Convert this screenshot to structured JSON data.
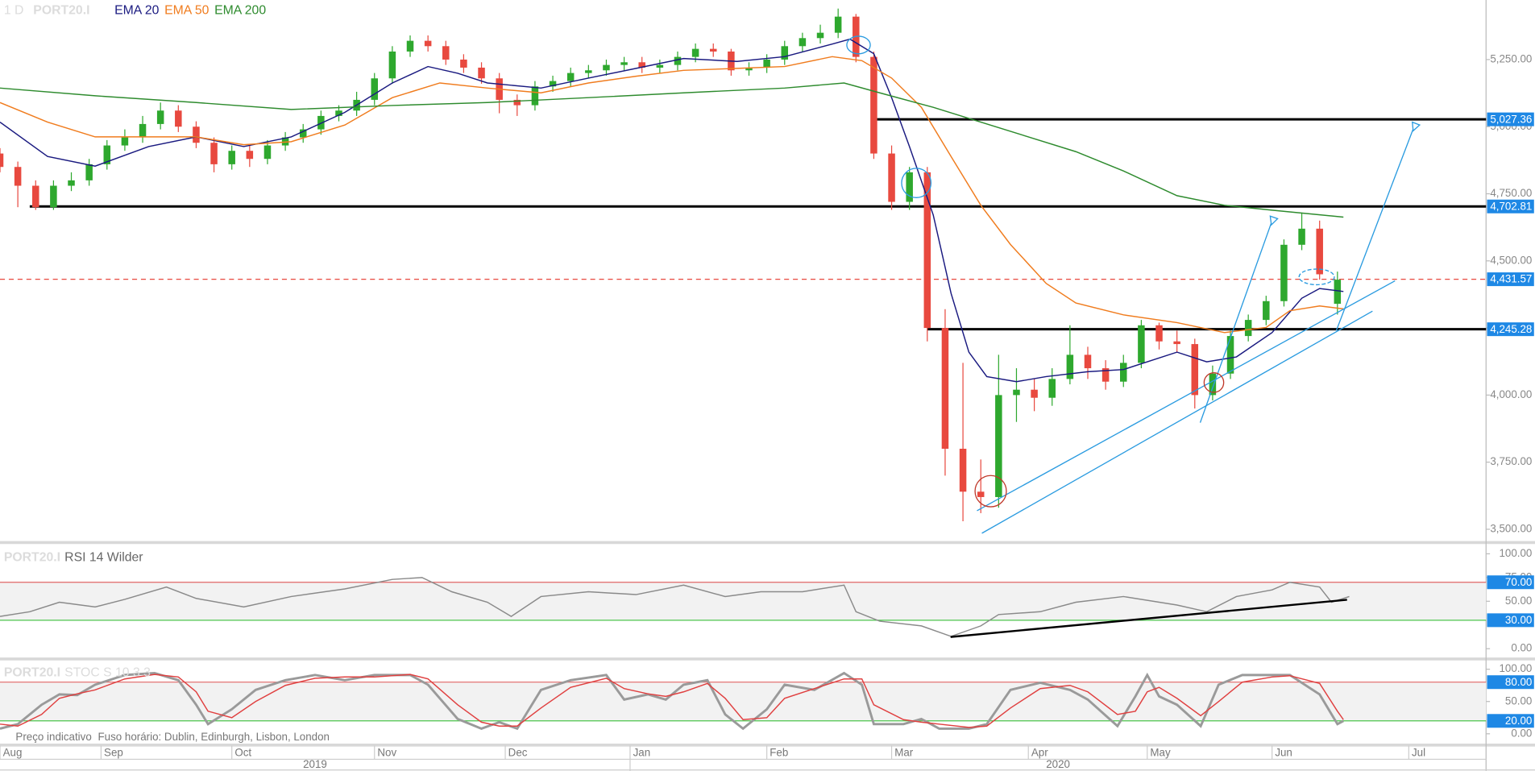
{
  "chart_data": [
    {
      "type": "candlestick",
      "timeframe": "1 D",
      "symbol": "PORT20.I",
      "xlim": [
        0,
        250
      ],
      "xticks": [
        {
          "value": 0,
          "label": "Aug"
        },
        {
          "value": 17,
          "label": "Sep"
        },
        {
          "value": 39,
          "label": "Oct"
        },
        {
          "value": 63,
          "label": "Nov"
        },
        {
          "value": 85,
          "label": "Dec"
        },
        {
          "value": 106,
          "label": "Jan"
        },
        {
          "value": 129,
          "label": "Feb"
        },
        {
          "value": 150,
          "label": "Mar"
        },
        {
          "value": 173,
          "label": "Apr"
        },
        {
          "value": 193,
          "label": "May"
        },
        {
          "value": 214,
          "label": "Jun"
        },
        {
          "value": 237,
          "label": "Jul"
        }
      ],
      "years": [
        "2019",
        "2020"
      ],
      "ylim": [
        3456,
        5472
      ],
      "yticks": [
        {
          "value": 3500,
          "label": "3,500.00"
        },
        {
          "value": 3750,
          "label": "3,750.00"
        },
        {
          "value": 4000,
          "label": "4,000.00"
        },
        {
          "value": 4250,
          "label": "4,250.00"
        },
        {
          "value": 4500,
          "label": "4,500.00"
        },
        {
          "value": 4750,
          "label": "4,750.00"
        },
        {
          "value": 5000,
          "label": "5,000.00"
        },
        {
          "value": 5250,
          "label": "5,250.00"
        }
      ],
      "up_color": "#2ea82e",
      "down_color": "#e8493f",
      "candles": {
        "x": [
          0,
          3,
          6,
          9,
          12,
          15,
          18,
          21,
          24,
          27,
          30,
          33,
          36,
          39,
          42,
          45,
          48,
          51,
          54,
          57,
          60,
          63,
          66,
          69,
          72,
          75,
          78,
          81,
          84,
          87,
          90,
          93,
          96,
          99,
          102,
          105,
          108,
          111,
          114,
          117,
          120,
          123,
          126,
          129,
          132,
          135,
          138,
          141,
          144,
          147,
          150,
          153,
          156,
          159,
          162,
          165,
          168,
          171,
          174,
          177,
          180,
          183,
          186,
          189,
          192,
          195,
          198,
          201,
          204,
          207,
          210,
          213,
          216,
          219,
          222,
          225
        ],
        "open": [
          4900,
          4850,
          4780,
          4700,
          4780,
          4800,
          4860,
          4930,
          4960,
          5010,
          5060,
          5000,
          4940,
          4860,
          4910,
          4880,
          4930,
          4960,
          4990,
          5040,
          5060,
          5100,
          5180,
          5280,
          5320,
          5300,
          5250,
          5220,
          5180,
          5100,
          5080,
          5150,
          5170,
          5200,
          5210,
          5230,
          5240,
          5220,
          5230,
          5260,
          5290,
          5280,
          5210,
          5220,
          5250,
          5300,
          5330,
          5350,
          5410,
          5260,
          4900,
          4720,
          4830,
          4250,
          3800,
          3640,
          3620,
          4000,
          4020,
          3990,
          4060,
          4150,
          4100,
          4050,
          4120,
          4260,
          4200,
          4190,
          4000,
          4080,
          4220,
          4280,
          4350,
          4560,
          4620,
          4340
        ],
        "high": [
          4920,
          4870,
          4800,
          4800,
          4830,
          4880,
          4950,
          4990,
          5040,
          5090,
          5080,
          5020,
          4960,
          4930,
          4930,
          4950,
          4980,
          5010,
          5060,
          5080,
          5130,
          5200,
          5300,
          5340,
          5340,
          5320,
          5270,
          5240,
          5200,
          5120,
          5170,
          5190,
          5220,
          5230,
          5250,
          5260,
          5260,
          5250,
          5280,
          5310,
          5310,
          5290,
          5240,
          5270,
          5320,
          5350,
          5380,
          5440,
          5420,
          5280,
          4930,
          4850,
          4850,
          4320,
          4120,
          3760,
          4150,
          4100,
          4060,
          4100,
          4260,
          4180,
          4130,
          4150,
          4280,
          4270,
          4240,
          4210,
          4110,
          4240,
          4300,
          4370,
          4580,
          4680,
          4650,
          4460
        ],
        "low": [
          4830,
          4700,
          4690,
          4690,
          4760,
          4780,
          4840,
          4910,
          4940,
          4990,
          4980,
          4920,
          4830,
          4840,
          4850,
          4860,
          4910,
          4940,
          4970,
          5020,
          5040,
          5080,
          5160,
          5260,
          5280,
          5230,
          5200,
          5160,
          5050,
          5040,
          5060,
          5130,
          5150,
          5180,
          5190,
          5210,
          5200,
          5200,
          5210,
          5240,
          5260,
          5190,
          5190,
          5200,
          5230,
          5280,
          5310,
          5330,
          5240,
          4880,
          4690,
          4690,
          4200,
          3700,
          3530,
          3560,
          3580,
          3900,
          3940,
          3960,
          4040,
          4060,
          4020,
          4030,
          4100,
          4170,
          4160,
          3950,
          3980,
          4060,
          4200,
          4260,
          4330,
          4540,
          4430,
          4300
        ],
        "close": [
          4850,
          4780,
          4700,
          4780,
          4800,
          4860,
          4930,
          4960,
          5010,
          5060,
          5000,
          4940,
          4860,
          4910,
          4880,
          4930,
          4960,
          4990,
          5040,
          5060,
          5100,
          5180,
          5280,
          5320,
          5300,
          5250,
          5220,
          5180,
          5100,
          5080,
          5150,
          5170,
          5200,
          5210,
          5230,
          5240,
          5220,
          5230,
          5260,
          5290,
          5280,
          5210,
          5220,
          5250,
          5300,
          5330,
          5350,
          5410,
          5260,
          4900,
          4720,
          4830,
          4250,
          3800,
          3640,
          3620,
          4000,
          4020,
          3990,
          4060,
          4150,
          4100,
          4050,
          4120,
          4260,
          4200,
          4190,
          4000,
          4080,
          4220,
          4280,
          4350,
          4560,
          4620,
          4450,
          4430
        ]
      },
      "series": [
        {
          "name": "EMA 20",
          "color": "#1a1a80",
          "x": [
            0,
            8,
            16,
            25,
            33,
            41,
            49,
            58,
            66,
            72,
            77,
            82,
            91,
            99,
            107,
            115,
            124,
            132,
            140,
            143,
            147,
            150,
            153,
            157,
            160,
            163,
            166,
            171,
            176,
            183,
            189,
            198,
            203,
            208,
            214,
            219,
            222,
            226
          ],
          "values": [
            5017,
            4889,
            4853,
            4926,
            4962,
            4926,
            4962,
            5053,
            5163,
            5224,
            5199,
            5163,
            5144,
            5181,
            5217,
            5254,
            5243,
            5261,
            5308,
            5326,
            5272,
            5108,
            4926,
            4671,
            4379,
            4160,
            4069,
            4050,
            4069,
            4087,
            4095,
            4160,
            4124,
            4142,
            4233,
            4361,
            4397,
            4386
          ]
        },
        {
          "name": "EMA 50",
          "color": "#f07c1e",
          "x": [
            0,
            8,
            16,
            33,
            41,
            49,
            58,
            66,
            74,
            82,
            91,
            99,
            107,
            115,
            124,
            132,
            140,
            145,
            150,
            155,
            160,
            165,
            170,
            176,
            181,
            189,
            198,
            206,
            213,
            217,
            222,
            226
          ],
          "values": [
            5090,
            5017,
            4962,
            4962,
            4933,
            4944,
            5006,
            5108,
            5163,
            5144,
            5126,
            5163,
            5188,
            5210,
            5217,
            5224,
            5261,
            5246,
            5181,
            5072,
            4889,
            4707,
            4561,
            4416,
            4343,
            4299,
            4270,
            4233,
            4252,
            4314,
            4332,
            4321
          ]
        },
        {
          "name": "EMA 200",
          "color": "#2e8b2e",
          "x": [
            0,
            16,
            33,
            49,
            66,
            82,
            99,
            115,
            132,
            142,
            148,
            157,
            165,
            173,
            181,
            189,
            198,
            206,
            214,
            226
          ],
          "values": [
            5144,
            5115,
            5090,
            5064,
            5079,
            5090,
            5108,
            5126,
            5144,
            5163,
            5126,
            5072,
            5017,
            4962,
            4907,
            4835,
            4743,
            4707,
            4689,
            4663
          ]
        }
      ],
      "levels": [
        {
          "value": 5027.36,
          "label": "5,027.36",
          "from": 147,
          "color": "#000000"
        },
        {
          "value": 4702.81,
          "label": "4,702.81",
          "from": 5,
          "color": "#000000"
        },
        {
          "value": 4431.57,
          "label": "4,431.57",
          "from": 0,
          "color": "#e8493f",
          "style": "dashed"
        },
        {
          "value": 4245.28,
          "label": "4,245.28",
          "from": 156,
          "color": "#000000"
        }
      ]
    },
    {
      "type": "line",
      "symbol": "PORT20.I",
      "title": "RSI 14 Wilder",
      "xlim": [
        0,
        250
      ],
      "ylim": [
        -9.3,
        109.3
      ],
      "yticks": [
        {
          "value": 0,
          "label": "0.00"
        },
        {
          "value": 50,
          "label": "50.00"
        },
        {
          "value": 75,
          "label": "75.00"
        },
        {
          "value": 100,
          "label": "100.00"
        }
      ],
      "bands": [
        {
          "value": 70,
          "label": "70.00",
          "color": "#e06666"
        },
        {
          "value": 30,
          "label": "30.00",
          "color": "#4cc44c"
        }
      ],
      "series": [
        {
          "color": "#8a8a8a",
          "x": [
            0,
            5,
            10,
            16,
            21,
            28,
            33,
            41,
            49,
            58,
            66,
            71,
            76,
            82,
            86,
            91,
            99,
            107,
            115,
            122,
            128,
            135,
            142,
            144,
            148,
            155,
            160,
            165,
            168,
            175,
            181,
            189,
            198,
            203,
            208,
            214,
            217,
            222,
            224,
            227
          ],
          "values": [
            34,
            39,
            49,
            44,
            52,
            65,
            53,
            44,
            55,
            63,
            73,
            75,
            60,
            49,
            34,
            55,
            60,
            57,
            67,
            55,
            60,
            60,
            67,
            39,
            29,
            24,
            13,
            24,
            36,
            39,
            49,
            55,
            46,
            39,
            55,
            62,
            70,
            65,
            49,
            55
          ]
        }
      ]
    },
    {
      "type": "line",
      "symbol": "PORT20.I",
      "title": "STOC S 10 3 3",
      "xlim": [
        0,
        250
      ],
      "ylim": [
        -15.2,
        112.1
      ],
      "yticks": [
        {
          "value": 0,
          "label": "0.00"
        },
        {
          "value": 50,
          "label": "50.00"
        },
        {
          "value": 100,
          "label": "100.00"
        }
      ],
      "bands": [
        {
          "value": 80,
          "label": "80.00",
          "color": "#e06666"
        },
        {
          "value": 20,
          "label": "20.00",
          "color": "#4cc44c"
        }
      ],
      "series": [
        {
          "color": "#9a9a9a",
          "x": [
            0,
            3,
            7,
            10,
            13,
            16,
            21,
            26,
            30,
            33,
            35,
            39,
            43,
            48,
            53,
            58,
            63,
            69,
            72,
            77,
            81,
            84,
            87,
            91,
            96,
            102,
            105,
            109,
            112,
            115,
            119,
            122,
            125,
            129,
            132,
            137,
            142,
            145,
            147,
            152,
            155,
            158,
            163,
            166,
            170,
            175,
            180,
            183,
            188,
            191,
            193,
            195,
            198,
            202,
            205,
            209,
            214,
            217,
            222,
            225,
            226
          ],
          "values": [
            8,
            15,
            45,
            61,
            60,
            76,
            91,
            94,
            83,
            45,
            15,
            38,
            68,
            83,
            91,
            83,
            91,
            91,
            76,
            23,
            8,
            18,
            8,
            68,
            83,
            91,
            53,
            61,
            53,
            76,
            83,
            30,
            8,
            38,
            76,
            68,
            94,
            76,
            15,
            15,
            23,
            8,
            8,
            15,
            68,
            79,
            68,
            53,
            12,
            58,
            91,
            58,
            45,
            12,
            76,
            91,
            91,
            91,
            61,
            15,
            20
          ]
        },
        {
          "color": "#e04040",
          "x": [
            0,
            3,
            7,
            10,
            13,
            16,
            21,
            26,
            30,
            33,
            35,
            39,
            43,
            48,
            53,
            58,
            63,
            69,
            72,
            77,
            81,
            84,
            87,
            91,
            96,
            102,
            105,
            109,
            112,
            115,
            119,
            122,
            125,
            129,
            132,
            137,
            142,
            145,
            147,
            152,
            155,
            158,
            163,
            166,
            170,
            175,
            180,
            183,
            188,
            191,
            193,
            195,
            198,
            202,
            205,
            209,
            214,
            217,
            222,
            225,
            226
          ],
          "values": [
            15,
            12,
            30,
            55,
            62,
            68,
            85,
            92,
            88,
            65,
            35,
            25,
            50,
            75,
            86,
            88,
            88,
            92,
            85,
            45,
            18,
            12,
            12,
            40,
            72,
            86,
            70,
            62,
            58,
            65,
            78,
            55,
            22,
            25,
            55,
            70,
            85,
            85,
            45,
            22,
            18,
            15,
            10,
            12,
            40,
            70,
            75,
            65,
            30,
            35,
            65,
            72,
            55,
            28,
            50,
            80,
            88,
            90,
            78,
            35,
            22
          ]
        }
      ]
    }
  ],
  "footer": [
    "Preço indicativo",
    "Fuso horário: Dublin, Edinburgh, Lisbon, London"
  ]
}
